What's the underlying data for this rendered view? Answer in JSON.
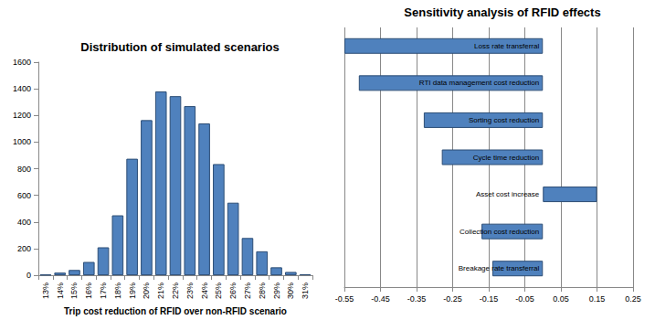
{
  "chart_data": [
    {
      "type": "bar",
      "title": "Distribution of simulated scenarios",
      "x_label": "Trip cost reduction of RFID over non-RFID scenario",
      "categories": [
        "13%",
        "14%",
        "15%",
        "16%",
        "17%",
        "18%",
        "19%",
        "20%",
        "21%",
        "22%",
        "23%",
        "24%",
        "25%",
        "26%",
        "27%",
        "28%",
        "29%",
        "30%",
        "31%"
      ],
      "values": [
        5,
        20,
        40,
        100,
        210,
        450,
        875,
        1165,
        1380,
        1345,
        1270,
        1140,
        835,
        545,
        280,
        180,
        60,
        25,
        8
      ],
      "color": "#4f81bd",
      "ylim": [
        0,
        1600
      ],
      "yticks": [
        0,
        200,
        400,
        600,
        800,
        1000,
        1200,
        1400,
        1600
      ],
      "grid": false
    },
    {
      "type": "bar",
      "title": "Sensitivity analysis of RFID effects",
      "orientation": "horizontal",
      "categories": [
        "Loss rate transferral",
        "RTI data management cost reduction",
        "Sorting cost reduction",
        "Cycle time reduction",
        "Asset cost increase",
        "Collection cost reduction",
        "Breakage rate transferral"
      ],
      "values": [
        -0.55,
        -0.51,
        -0.33,
        -0.28,
        0.15,
        -0.17,
        -0.14
      ],
      "color": "#4f81bd",
      "xlim": [
        -0.55,
        0.25
      ],
      "xticks": [
        -0.55,
        -0.45,
        -0.35,
        -0.25,
        -0.15,
        -0.05,
        0.05,
        0.15,
        0.25
      ],
      "grid": true,
      "tick_labels": "x"
    }
  ]
}
